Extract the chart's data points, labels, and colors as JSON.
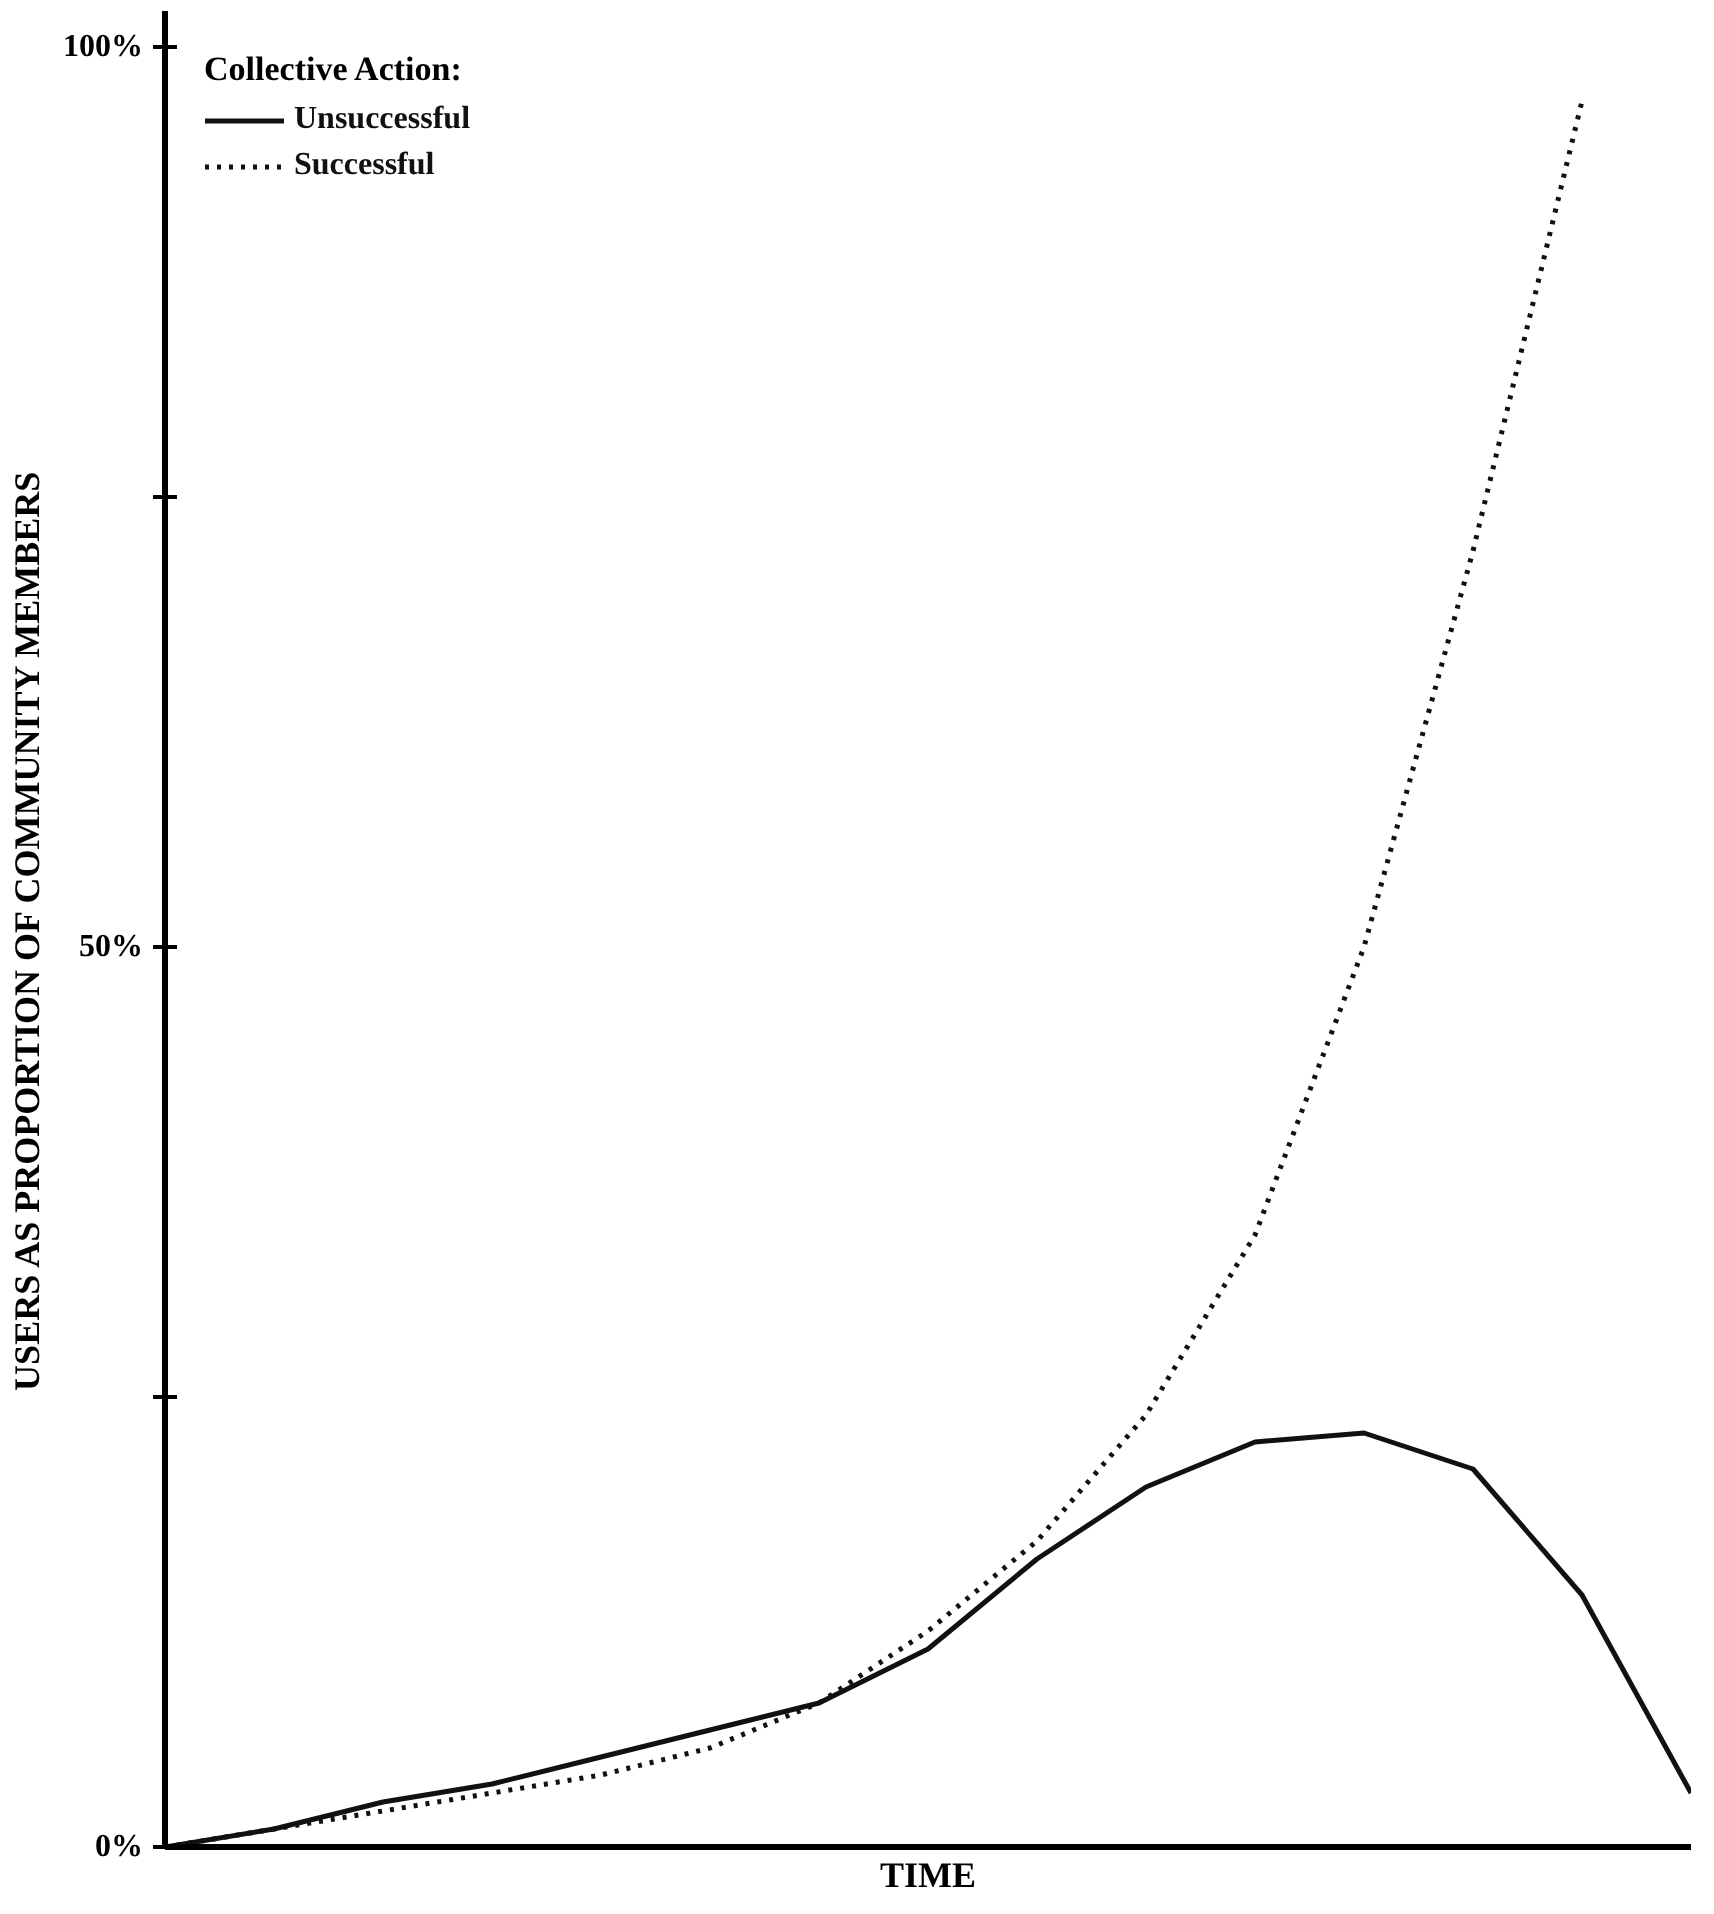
{
  "chart_data": {
    "type": "line",
    "xlabel": "TIME",
    "ylabel": "USERS AS PROPORTION OF COMMUNITY MEMBERS",
    "legend_title": "Collective Action:",
    "categories": [
      null,
      null,
      null,
      null,
      null,
      null,
      null,
      null,
      null,
      null,
      null,
      null,
      null,
      null,
      null
    ],
    "series": [
      {
        "name": "Unsuccessful",
        "color": "#111111",
        "line_style": "solid",
        "values": [
          0,
          1,
          2.5,
          3.5,
          5,
          6.5,
          8,
          11,
          16,
          20,
          22.5,
          23,
          21,
          14,
          3
        ]
      },
      {
        "name": "Successful",
        "color": "#111111",
        "line_style": "dotted",
        "values": [
          0,
          1,
          2,
          3,
          4,
          5.5,
          8,
          12,
          17,
          24,
          34,
          50,
          72,
          97,
          null
        ]
      }
    ],
    "ylim": [
      0,
      102
    ],
    "yticks": [
      {
        "value": 0,
        "label": "0%"
      },
      {
        "value": 25,
        "label": null
      },
      {
        "value": 50,
        "label": "50%"
      },
      {
        "value": 75,
        "label": null
      },
      {
        "value": 100,
        "label": "100%"
      }
    ],
    "tick_labels": "y",
    "grid": false,
    "legend": "top left",
    "marker": "none"
  }
}
